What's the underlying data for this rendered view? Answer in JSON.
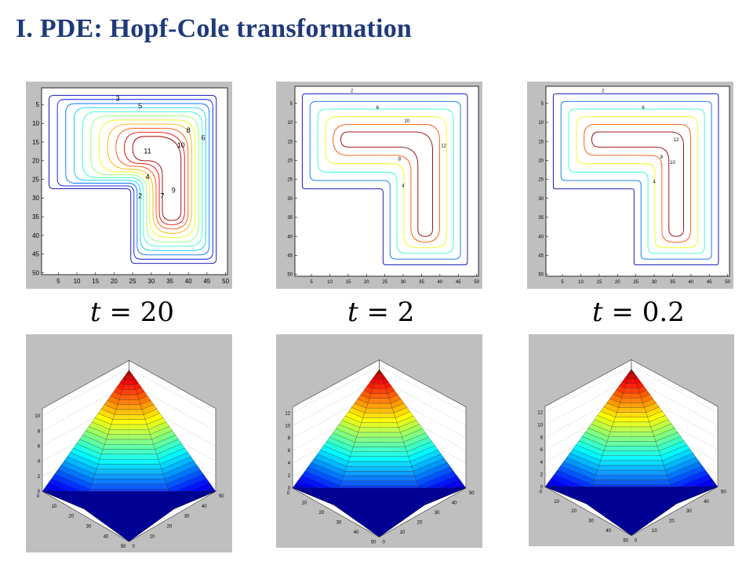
{
  "slide": {
    "title": "I. PDE: Hopf-Cole transformation"
  },
  "contour_plots": [
    {
      "name": "t20",
      "x_ticks": [
        "5",
        "10",
        "15",
        "20",
        "25",
        "30",
        "35",
        "40",
        "45",
        "50"
      ],
      "y_ticks": [
        "5",
        "10",
        "15",
        "20",
        "25",
        "30",
        "35",
        "40",
        "45",
        "50"
      ],
      "level_labels": [
        "3",
        "5",
        "8",
        "6",
        "10",
        "11",
        "4",
        "9",
        "2",
        "7"
      ]
    },
    {
      "name": "t2",
      "x_ticks": [
        "5",
        "10",
        "15",
        "20",
        "25",
        "30",
        "35",
        "40",
        "45",
        "50"
      ],
      "y_ticks": [
        "5",
        "10",
        "15",
        "20",
        "25",
        "30",
        "35",
        "40",
        "45",
        "50"
      ],
      "level_labels": [
        "2",
        "6",
        "10",
        "12",
        "8",
        "4"
      ]
    },
    {
      "name": "t02",
      "x_ticks": [
        "5",
        "10",
        "15",
        "20",
        "25",
        "30",
        "35",
        "40",
        "45",
        "50"
      ],
      "y_ticks": [
        "5",
        "10",
        "15",
        "20",
        "25",
        "30",
        "35",
        "40",
        "45",
        "50"
      ],
      "level_labels": [
        "2",
        "6",
        "12",
        "8",
        "10",
        "4"
      ]
    }
  ],
  "time_labels": [
    {
      "var": "t",
      "eq": " = ",
      "val": "20"
    },
    {
      "var": "t",
      "eq": " = ",
      "val": "2"
    },
    {
      "var": "t",
      "eq": " = ",
      "val": "0.2"
    }
  ],
  "surface_plots": [
    {
      "name": "t20",
      "z_ticks": [
        "0",
        "2",
        "4",
        "6",
        "8",
        "10"
      ],
      "ax1_ticks": [
        "0",
        "10",
        "20",
        "30",
        "40",
        "50"
      ],
      "ax2_ticks": [
        "0",
        "10",
        "20",
        "30",
        "40",
        "50"
      ]
    },
    {
      "name": "t2",
      "z_ticks": [
        "0",
        "2",
        "4",
        "6",
        "8",
        "10",
        "12"
      ],
      "ax1_ticks": [
        "0",
        "10",
        "20",
        "30",
        "40",
        "50"
      ],
      "ax2_ticks": [
        "0",
        "10",
        "20",
        "30",
        "40",
        "50"
      ]
    },
    {
      "name": "t02",
      "z_ticks": [
        "0",
        "2",
        "4",
        "6",
        "8",
        "10",
        "12"
      ],
      "ax1_ticks": [
        "0",
        "10",
        "20",
        "30",
        "40",
        "50"
      ],
      "ax2_ticks": [
        "0",
        "10",
        "20",
        "30",
        "40",
        "50"
      ]
    }
  ],
  "colors": {
    "title": "#1f3a7a",
    "panel_bg": "#bfbfbf"
  }
}
